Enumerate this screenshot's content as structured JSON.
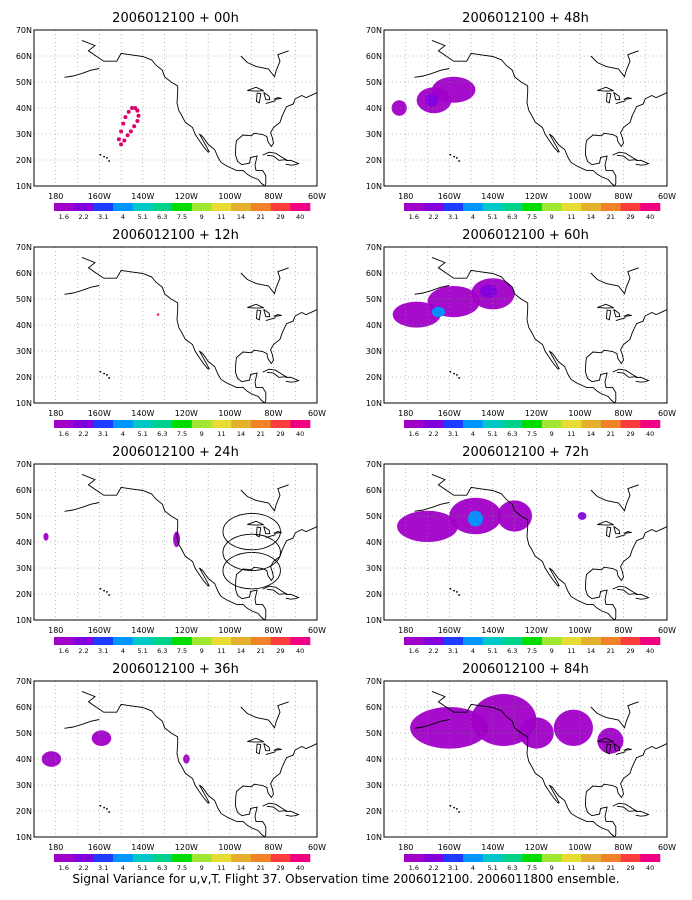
{
  "figure": {
    "caption": "Signal Variance for u,v,T. Flight 37. Observation time 2006012100. 2006011800 ensemble."
  },
  "axes": {
    "lat_ticks": [
      "70N",
      "60N",
      "50N",
      "40N",
      "30N",
      "20N",
      "10N"
    ],
    "lon_ticks": [
      "180",
      "160W",
      "140W",
      "120W",
      "100W",
      "80W",
      "60W"
    ]
  },
  "colorbar": {
    "labels": [
      "1.6",
      "2.2",
      "3.1",
      "4",
      "5.1",
      "6.3",
      "7.5",
      "9",
      "11",
      "14",
      "21",
      "29",
      "40"
    ],
    "colors": [
      "#a000c8",
      "#8200dc",
      "#1e3cff",
      "#0096ff",
      "#00c8c8",
      "#00d28c",
      "#00dc00",
      "#a0e632",
      "#e6dc32",
      "#e6af2d",
      "#f08228",
      "#fa3c3c",
      "#f00082"
    ]
  },
  "panels": [
    {
      "title": "2006012100 + 00h",
      "col": 0,
      "row": 0
    },
    {
      "title": "2006012100 + 48h",
      "col": 1,
      "row": 0
    },
    {
      "title": "2006012100 + 12h",
      "col": 0,
      "row": 1
    },
    {
      "title": "2006012100 + 60h",
      "col": 1,
      "row": 1
    },
    {
      "title": "2006012100 + 24h",
      "col": 0,
      "row": 2
    },
    {
      "title": "2006012100 + 72h",
      "col": 1,
      "row": 2
    },
    {
      "title": "2006012100 + 36h",
      "col": 0,
      "row": 3
    },
    {
      "title": "2006012100 + 84h",
      "col": 1,
      "row": 3
    }
  ]
}
